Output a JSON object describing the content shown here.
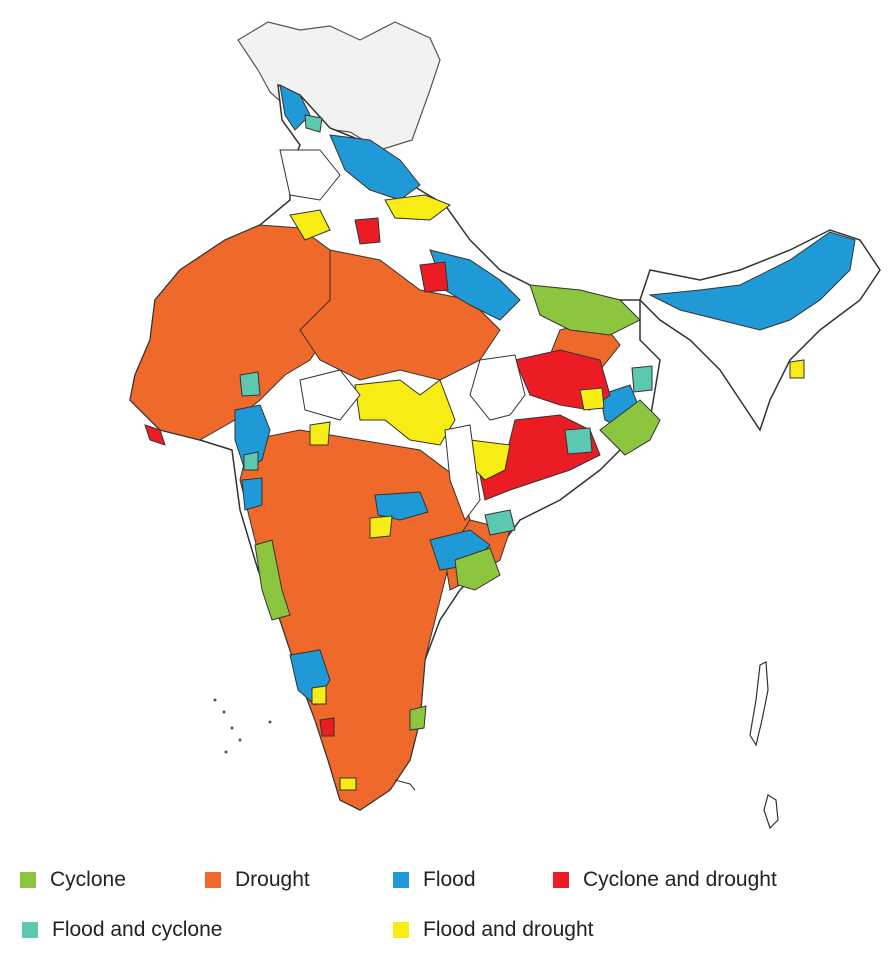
{
  "legend": {
    "items": [
      {
        "key": "cyclone",
        "label": "Cyclone",
        "color": "#8cc63f"
      },
      {
        "key": "drought",
        "label": "Drought",
        "color": "#ef6a2a"
      },
      {
        "key": "flood",
        "label": "Flood",
        "color": "#1f9ad6"
      },
      {
        "key": "cyclone_drought",
        "label": "Cyclone and drought",
        "color": "#ec1c24"
      },
      {
        "key": "flood_cyclone",
        "label": "Flood and cyclone",
        "color": "#5cc8b0"
      },
      {
        "key": "flood_drought",
        "label": "Flood and drought",
        "color": "#f7ec13"
      }
    ]
  },
  "map": {
    "no_hazard_color": "#ffffff",
    "disputed_color": "#f2f2f2",
    "border_color": "#222222"
  }
}
